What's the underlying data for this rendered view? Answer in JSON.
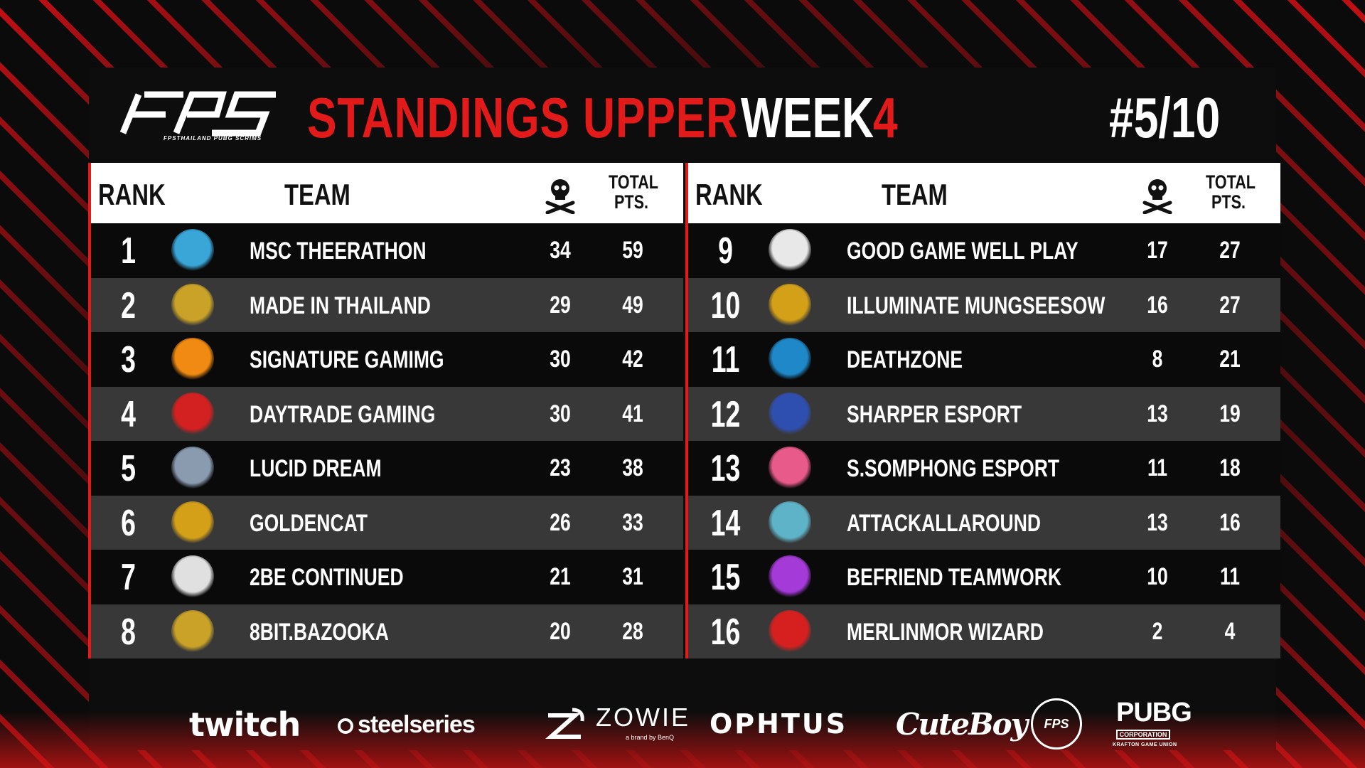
{
  "header": {
    "logo_text": "FPS",
    "logo_subtitle": "FPSTHAILAND PUBG SCRIMS",
    "title_red": "STANDINGS UPPER",
    "title_white": "WEEK",
    "title_week_number": "4",
    "match_number": "#5/10"
  },
  "columns": {
    "rank": "RANK",
    "team": "TEAM",
    "kills_icon": "skull-crossbones-icon",
    "total_line1": "TOTAL",
    "total_line2": "PTS."
  },
  "left_table": [
    {
      "rank": "1",
      "team": "MSC THEERATHON",
      "kills": "34",
      "pts": "59",
      "logo_color": "#3aa6d8"
    },
    {
      "rank": "2",
      "team": "MADE IN THAILAND",
      "kills": "29",
      "pts": "49",
      "logo_color": "#c9a227"
    },
    {
      "rank": "3",
      "team": "SIGNATURE GAMIMG",
      "kills": "30",
      "pts": "42",
      "logo_color": "#f08a12"
    },
    {
      "rank": "4",
      "team": "DAYTRADE GAMING",
      "kills": "30",
      "pts": "41",
      "logo_color": "#d32020"
    },
    {
      "rank": "5",
      "team": "LUCID DREAM",
      "kills": "23",
      "pts": "38",
      "logo_color": "#8a9bb0"
    },
    {
      "rank": "6",
      "team": "GOLDENCAT",
      "kills": "26",
      "pts": "33",
      "logo_color": "#d4a017"
    },
    {
      "rank": "7",
      "team": "2BE CONTINUED",
      "kills": "21",
      "pts": "31",
      "logo_color": "#e0e0e0"
    },
    {
      "rank": "8",
      "team": "8BIT.BAZOOKA",
      "kills": "20",
      "pts": "28",
      "logo_color": "#c9a227"
    }
  ],
  "right_table": [
    {
      "rank": "9",
      "team": "GOOD GAME WELL PLAY",
      "kills": "17",
      "pts": "27",
      "logo_color": "#e8e8e8"
    },
    {
      "rank": "10",
      "team": "ILLUMINATE MUNGSEESOW",
      "kills": "16",
      "pts": "27",
      "logo_color": "#d4a017"
    },
    {
      "rank": "11",
      "team": "DEATHZONE",
      "kills": "8",
      "pts": "21",
      "logo_color": "#1e88c8"
    },
    {
      "rank": "12",
      "team": "SHARPER ESPORT",
      "kills": "13",
      "pts": "19",
      "logo_color": "#2f4fb0"
    },
    {
      "rank": "13",
      "team": "S.SOMPHONG ESPORT",
      "kills": "11",
      "pts": "18",
      "logo_color": "#e85a8a"
    },
    {
      "rank": "14",
      "team": "ATTACKALLAROUND",
      "kills": "13",
      "pts": "16",
      "logo_color": "#5fb3c8"
    },
    {
      "rank": "15",
      "team": "BEFRIEND TEAMWORK",
      "kills": "10",
      "pts": "11",
      "logo_color": "#a43ad8"
    },
    {
      "rank": "16",
      "team": "MERLINMOR WIZARD",
      "kills": "2",
      "pts": "4",
      "logo_color": "#d62020"
    }
  ],
  "sponsors": {
    "twitch": "twitch",
    "steelseries": "steelseries",
    "zowie": "ZOWIE",
    "zowie_sub": "a brand by BenQ",
    "ophtus": "OPHTUS",
    "cuteboy": "CuteBoy",
    "fps_thailand": "FPS",
    "pubg": "PUBG",
    "pubg_sub": "CORPORATION",
    "pubg_sub2": "KRAFTON GAME UNION"
  }
}
